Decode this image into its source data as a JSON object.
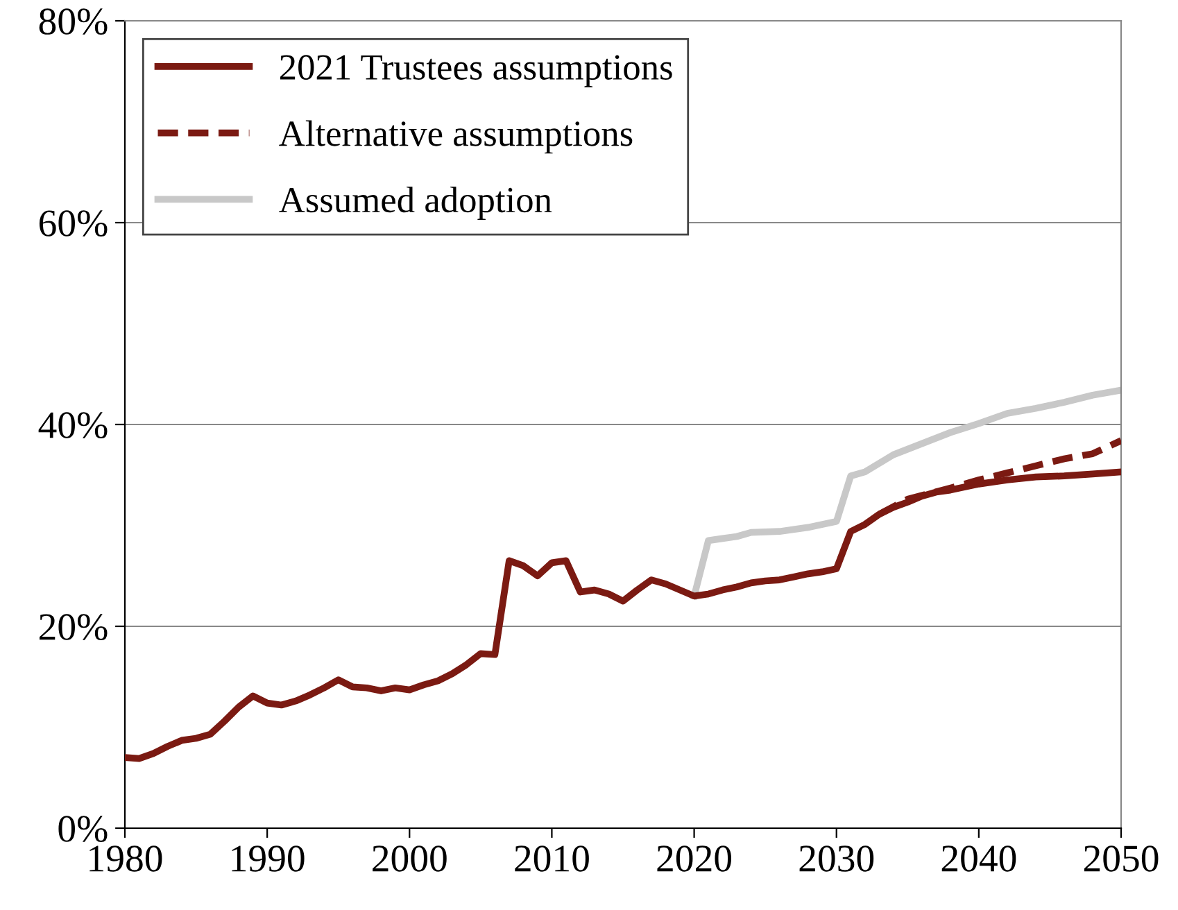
{
  "chart_data": {
    "type": "line",
    "xlim": [
      1980,
      2050
    ],
    "xticks": [
      1980,
      1990,
      2000,
      2010,
      2020,
      2030,
      2040,
      2050
    ],
    "ylim": [
      0,
      80
    ],
    "yticks": [
      {
        "value": 0,
        "label": "0%"
      },
      {
        "value": 20,
        "label": "20%"
      },
      {
        "value": 40,
        "label": "40%"
      },
      {
        "value": 60,
        "label": "60%"
      },
      {
        "value": 80,
        "label": "80%"
      }
    ],
    "grid": "y",
    "legend": "top left",
    "marker": "none",
    "series": [
      {
        "name": "2021 Trustees assumptions",
        "color": "#7b1a12",
        "line_style": "solid",
        "x": [
          1980,
          1981,
          1982,
          1983,
          1984,
          1985,
          1986,
          1987,
          1988,
          1989,
          1990,
          1991,
          1992,
          1993,
          1994,
          1995,
          1996,
          1997,
          1998,
          1999,
          2000,
          2001,
          2002,
          2003,
          2004,
          2005,
          2006,
          2007,
          2008,
          2009,
          2010,
          2011,
          2012,
          2013,
          2014,
          2015,
          2016,
          2017,
          2018,
          2019,
          2020,
          2021,
          2022,
          2023,
          2024,
          2025,
          2026,
          2027,
          2028,
          2029,
          2030,
          2031,
          2032,
          2033,
          2034,
          2035,
          2036,
          2037,
          2038,
          2040,
          2042,
          2044,
          2046,
          2048,
          2050
        ],
        "values": [
          7.0,
          6.9,
          7.4,
          8.1,
          8.7,
          8.9,
          9.3,
          10.6,
          12.0,
          13.1,
          12.4,
          12.2,
          12.6,
          13.2,
          13.9,
          14.7,
          14.0,
          13.9,
          13.6,
          13.9,
          13.7,
          14.2,
          14.6,
          15.3,
          16.2,
          17.3,
          17.2,
          26.5,
          26.0,
          25.0,
          26.3,
          26.5,
          23.4,
          23.6,
          23.2,
          22.5,
          23.6,
          24.6,
          24.2,
          23.6,
          23.0,
          23.2,
          23.6,
          23.9,
          24.3,
          24.5,
          24.6,
          24.9,
          25.2,
          25.4,
          25.7,
          29.4,
          30.1,
          31.1,
          31.8,
          32.3,
          32.9,
          33.3,
          33.5,
          34.1,
          34.5,
          34.8,
          34.9,
          35.1,
          35.3
        ]
      },
      {
        "name": "Alternative assumptions",
        "color": "#7b1a12",
        "line_style": "dashed",
        "x": [
          2033,
          2035,
          2038,
          2040,
          2042,
          2044,
          2046,
          2048,
          2050
        ],
        "values": [
          31.1,
          32.6,
          33.7,
          34.5,
          35.2,
          35.9,
          36.6,
          37.1,
          38.4
        ]
      },
      {
        "name": "Assumed adoption",
        "color": "#c8c8c8",
        "line_style": "solid",
        "x": [
          2020,
          2021,
          2022,
          2023,
          2024,
          2026,
          2028,
          2030,
          2031,
          2032,
          2034,
          2036,
          2038,
          2040,
          2042,
          2044,
          2046,
          2048,
          2050
        ],
        "values": [
          23.0,
          28.5,
          28.7,
          28.9,
          29.3,
          29.4,
          29.8,
          30.4,
          34.9,
          35.3,
          37.0,
          38.1,
          39.2,
          40.1,
          41.1,
          41.6,
          42.2,
          42.9,
          43.4
        ]
      }
    ]
  }
}
